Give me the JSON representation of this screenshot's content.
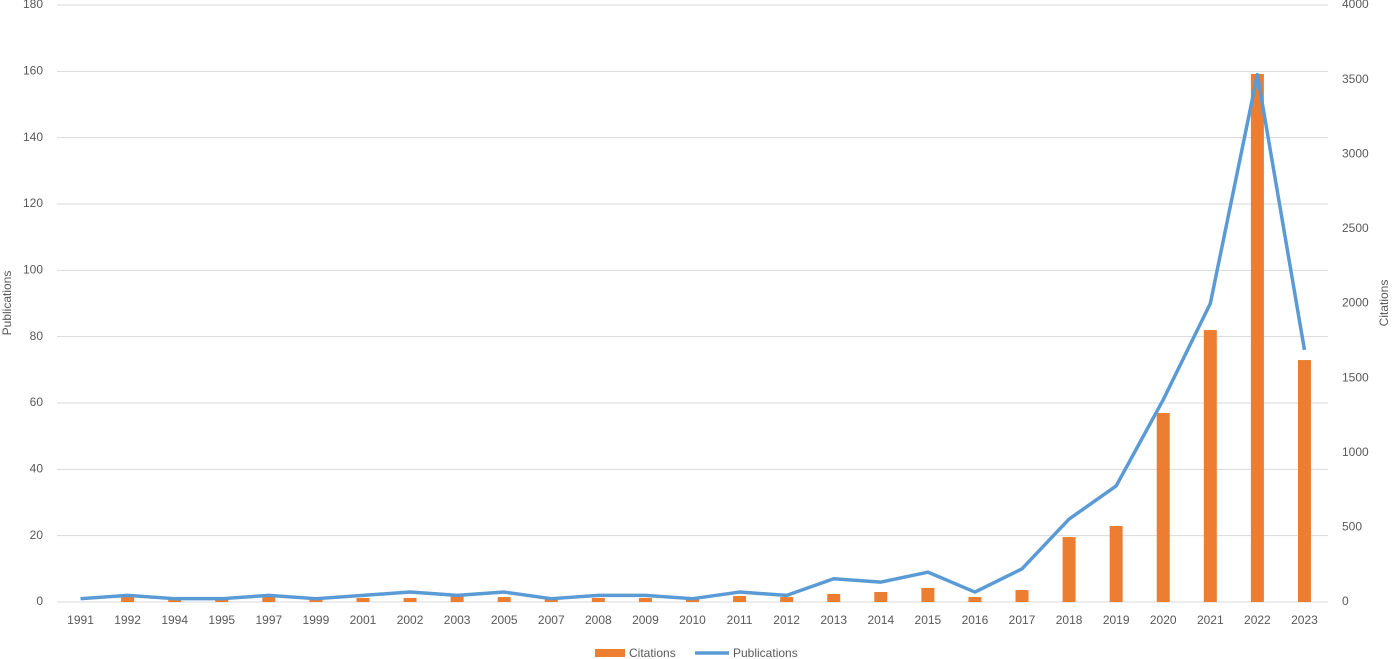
{
  "chart_data": {
    "type": "bar-line",
    "categories": [
      "1991",
      "1992",
      "1994",
      "1995",
      "1997",
      "1999",
      "2001",
      "2002",
      "2003",
      "2005",
      "2007",
      "2008",
      "2009",
      "2010",
      "2011",
      "2012",
      "2013",
      "2014",
      "2015",
      "2016",
      "2017",
      "2018",
      "2019",
      "2020",
      "2021",
      "2022",
      "2023"
    ],
    "series": [
      {
        "name": "Citations",
        "type": "bar",
        "axis": "y2",
        "color": "#ed7d31",
        "values": [
          0,
          47,
          20,
          20,
          47,
          20,
          27,
          27,
          40,
          33,
          27,
          27,
          27,
          20,
          40,
          33,
          54,
          67,
          94,
          33,
          80,
          435,
          509,
          1266,
          1822,
          3538,
          1621
        ]
      },
      {
        "name": "Publications",
        "type": "line",
        "axis": "y",
        "color": "#5b9bd5",
        "values": [
          1,
          2,
          1,
          1,
          2,
          1,
          2,
          3,
          2,
          3,
          1,
          2,
          2,
          1,
          3,
          2,
          7,
          6,
          9,
          3,
          10,
          25,
          35,
          61,
          90,
          159,
          76
        ]
      }
    ],
    "ylabel": "Publications",
    "y2label": "Citations",
    "ylim": [
      0,
      180
    ],
    "yticks": [
      0,
      20,
      40,
      60,
      80,
      100,
      120,
      140,
      160,
      180
    ],
    "y2lim": [
      0,
      4000
    ],
    "y2ticks": [
      0,
      500,
      1000,
      1500,
      2000,
      2500,
      3000,
      3500,
      4000
    ],
    "grid": true,
    "legend": "bottom"
  }
}
